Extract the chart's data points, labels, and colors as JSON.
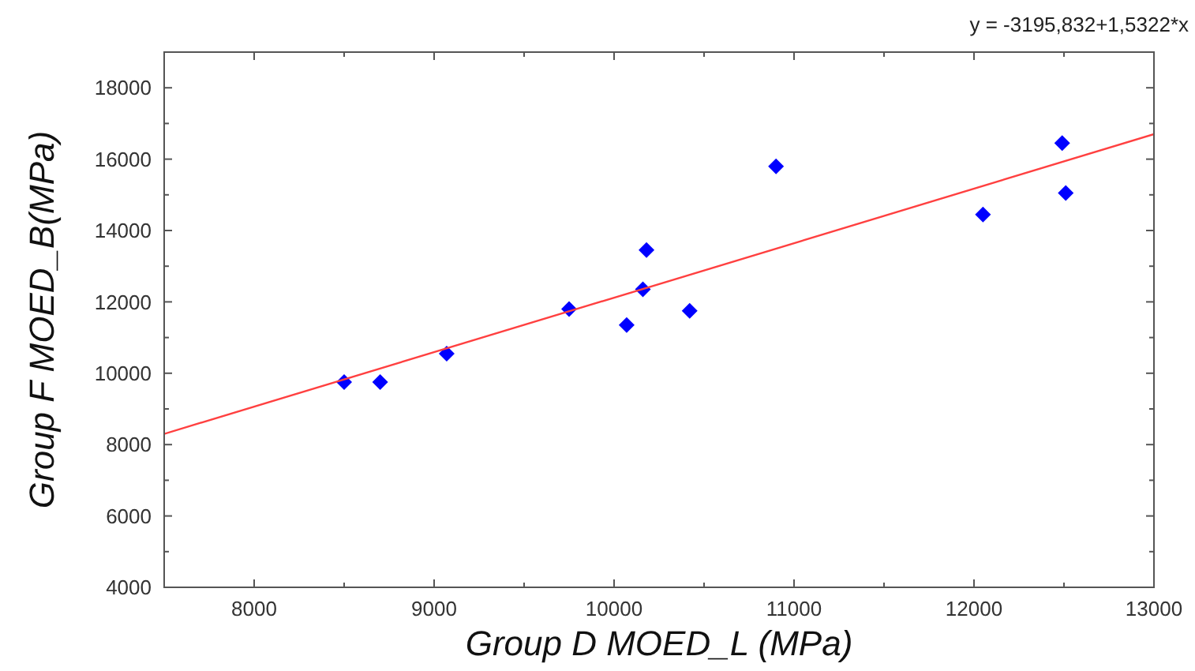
{
  "chart_data": {
    "type": "scatter",
    "xlabel": "Group D  MOED_L (MPa)",
    "ylabel": "Group F  MOED_B(MPa)",
    "annotations": [
      "y = -3195,832+1,5322*x"
    ],
    "xlim": [
      7500,
      13000
    ],
    "ylim": [
      4000,
      19000
    ],
    "xticks": [
      8000,
      {
        "value": 8500,
        "label": null
      },
      9000,
      {
        "value": 9500,
        "label": null
      },
      10000,
      {
        "value": 10500,
        "label": null
      },
      11000,
      {
        "value": 11500,
        "label": null
      },
      12000,
      {
        "value": 12500,
        "label": null
      },
      13000
    ],
    "yticks": [
      4000,
      {
        "value": 5000,
        "label": null
      },
      6000,
      {
        "value": 7000,
        "label": null
      },
      8000,
      {
        "value": 9000,
        "label": null
      },
      10000,
      {
        "value": 11000,
        "label": null
      },
      12000,
      {
        "value": 13000,
        "label": null
      },
      14000,
      {
        "value": 15000,
        "label": null
      },
      16000,
      {
        "value": 17000,
        "label": null
      },
      18000
    ],
    "grid": false,
    "marker": "diamond",
    "series": [
      {
        "color": "#0000ff",
        "x": [
          8500,
          8700,
          9070,
          9750,
          10070,
          10160,
          10180,
          10420,
          10900,
          12050,
          12490,
          12510
        ],
        "values": [
          9750,
          9750,
          10550,
          11800,
          11350,
          12350,
          13450,
          11750,
          15800,
          14450,
          16450,
          15050
        ]
      },
      {
        "type": "line",
        "color": "#ff4040",
        "line_style": "solid",
        "marker": "none",
        "x": [
          7500,
          13000
        ],
        "values": [
          8300,
          16700
        ]
      }
    ]
  }
}
